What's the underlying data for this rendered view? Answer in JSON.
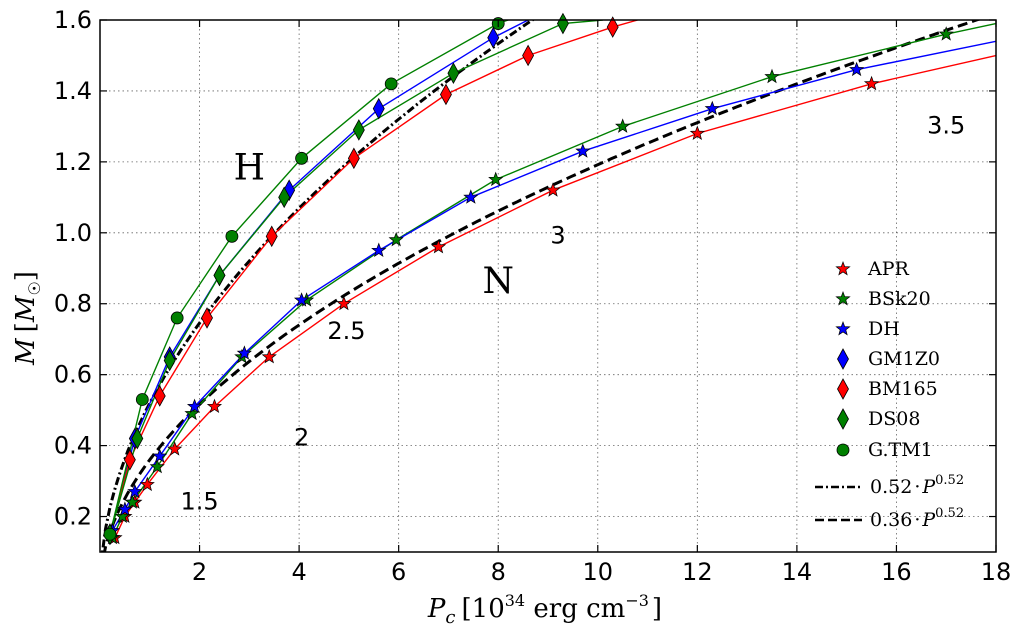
{
  "chart_data": {
    "type": "line",
    "xlabel_parts": {
      "main": "P",
      "sub": "c",
      "bracket_open": "[10",
      "exp": "34",
      "unit": " erg cm",
      "unit_exp": "−3",
      "bracket_close": "]"
    },
    "ylabel_parts": {
      "main": "M",
      "bracket_open": "[",
      "unit": "M",
      "unit_sub": "☉",
      "bracket_close": "]"
    },
    "xlim": [
      0,
      18
    ],
    "ylim": [
      0.1,
      1.6
    ],
    "x_ticks": [
      2,
      4,
      6,
      8,
      10,
      12,
      14,
      16,
      18
    ],
    "y_ticks": [
      0.2,
      0.4,
      0.6,
      0.8,
      1.0,
      1.2,
      1.4,
      1.6
    ],
    "x_tick_labels": [
      "2",
      "4",
      "6",
      "8",
      "10",
      "12",
      "14",
      "16",
      "18"
    ],
    "y_tick_labels": [
      "0.2",
      "0.4",
      "0.6",
      "0.8",
      "1.0",
      "1.2",
      "1.4",
      "1.6"
    ],
    "grid": true,
    "legend_position": "right",
    "colors": {
      "red": "#ff0000",
      "green": "#008000",
      "blue": "#0000ff",
      "black": "#000000"
    },
    "series": [
      {
        "name": "APR",
        "color": "#ff0000",
        "marker": "star",
        "x": [
          0.3,
          0.5,
          0.7,
          0.95,
          1.5,
          2.3,
          3.4,
          4.9,
          6.8,
          9.1,
          12.0,
          15.5,
          18.0
        ],
        "y": [
          0.14,
          0.2,
          0.24,
          0.29,
          0.39,
          0.51,
          0.65,
          0.8,
          0.96,
          1.12,
          1.28,
          1.42,
          1.5
        ]
      },
      {
        "name": "BSk20",
        "color": "#008000",
        "marker": "star",
        "x": [
          0.25,
          0.45,
          0.65,
          1.15,
          1.85,
          2.85,
          4.15,
          5.95,
          7.95,
          10.5,
          13.5,
          17.0,
          18.0
        ],
        "y": [
          0.14,
          0.2,
          0.24,
          0.34,
          0.49,
          0.65,
          0.81,
          0.98,
          1.15,
          1.3,
          1.44,
          1.56,
          1.59
        ]
      },
      {
        "name": "DH",
        "color": "#0000ff",
        "marker": "star",
        "x": [
          0.25,
          0.5,
          0.7,
          1.2,
          1.9,
          2.9,
          4.05,
          5.6,
          7.45,
          9.7,
          12.3,
          15.2,
          18.0
        ],
        "y": [
          0.16,
          0.22,
          0.27,
          0.37,
          0.51,
          0.66,
          0.81,
          0.95,
          1.1,
          1.23,
          1.35,
          1.46,
          1.54
        ]
      },
      {
        "name": "GM1Z0",
        "color": "#0000ff",
        "marker": "diamond",
        "x": [
          0.2,
          0.7,
          1.4,
          2.4,
          3.8,
          5.6,
          7.9,
          8.6
        ],
        "y": [
          0.15,
          0.42,
          0.65,
          0.88,
          1.12,
          1.35,
          1.55,
          1.6
        ]
      },
      {
        "name": "BM165",
        "color": "#ff0000",
        "marker": "diamond",
        "x": [
          0.2,
          0.6,
          1.2,
          2.15,
          3.45,
          5.1,
          6.95,
          8.6,
          10.3,
          10.8
        ],
        "y": [
          0.15,
          0.36,
          0.54,
          0.76,
          0.99,
          1.21,
          1.39,
          1.5,
          1.58,
          1.6
        ]
      },
      {
        "name": "DS08",
        "color": "#008000",
        "marker": "diamond",
        "x": [
          0.2,
          0.75,
          1.4,
          2.4,
          3.7,
          5.2,
          7.1,
          9.3,
          10.1
        ],
        "y": [
          0.15,
          0.42,
          0.64,
          0.88,
          1.1,
          1.29,
          1.45,
          1.59,
          1.6
        ]
      },
      {
        "name": "G.TM1",
        "color": "#008000",
        "marker": "circle",
        "x": [
          0.2,
          0.85,
          1.55,
          2.65,
          4.05,
          5.85,
          8.0,
          8.2
        ],
        "y": [
          0.15,
          0.53,
          0.76,
          0.99,
          1.21,
          1.42,
          1.59,
          1.6
        ]
      }
    ],
    "fits": [
      {
        "name": "0.52·P^0.52",
        "label_coef": "0.52",
        "label_dot": "·",
        "label_var": "P",
        "label_exp": "0.52",
        "coef": 0.52,
        "exp": 0.52,
        "style": "dashdot",
        "color": "#000000"
      },
      {
        "name": "0.36·P^0.52",
        "label_coef": "0.36",
        "label_dot": "·",
        "label_var": "P",
        "label_exp": "0.52",
        "coef": 0.36,
        "exp": 0.52,
        "style": "dashed",
        "color": "#000000"
      }
    ],
    "annotations": [
      {
        "text": "H",
        "x": 3.0,
        "y": 1.15,
        "size": "large"
      },
      {
        "text": "N",
        "x": 8.0,
        "y": 0.83,
        "size": "large"
      },
      {
        "text": "1.5",
        "x": 2.0,
        "y": 0.22,
        "size": "small"
      },
      {
        "text": "2",
        "x": 4.05,
        "y": 0.4,
        "size": "small"
      },
      {
        "text": "2.5",
        "x": 4.95,
        "y": 0.7,
        "size": "small"
      },
      {
        "text": "3",
        "x": 9.2,
        "y": 0.97,
        "size": "small"
      },
      {
        "text": "3.5",
        "x": 17.0,
        "y": 1.28,
        "size": "small"
      }
    ]
  }
}
